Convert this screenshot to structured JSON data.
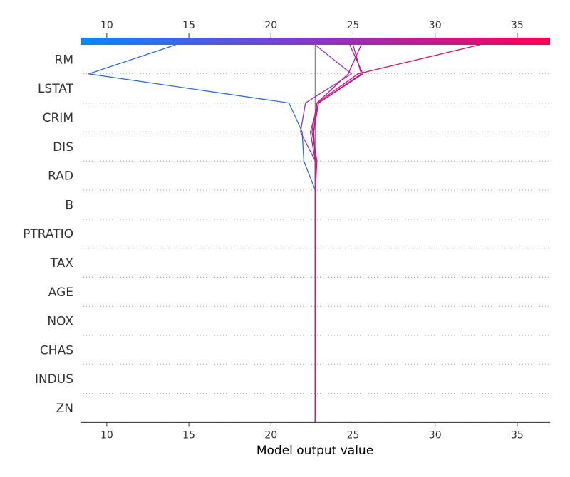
{
  "chart_data": {
    "type": "line",
    "chart_kind": "shap-decision-plot",
    "xlabel": "Model output value",
    "xlim": [
      8.4,
      37.0
    ],
    "x_ticks": [
      10,
      15,
      20,
      25,
      30,
      35
    ],
    "base_value": 22.7,
    "features": [
      "RM",
      "LSTAT",
      "CRIM",
      "DIS",
      "RAD",
      "B",
      "PTRATIO",
      "TAX",
      "AGE",
      "NOX",
      "CHAS",
      "INDUS",
      "ZN"
    ],
    "colorbar": {
      "colors": [
        "#008bfb",
        "#8a35c9",
        "#ff0052"
      ],
      "ticks": [
        10,
        15,
        20,
        25,
        30,
        35
      ]
    },
    "series": [
      {
        "color": "#2a6ee6",
        "final": 14.2,
        "values": [
          14.2,
          8.9,
          21.1,
          21.9,
          22.0,
          22.7,
          22.7,
          22.7,
          22.7,
          22.7,
          22.7,
          22.7,
          22.7
        ]
      },
      {
        "color": "#9a30c8",
        "final": 22.7,
        "values": [
          22.7,
          24.9,
          22.1,
          21.8,
          22.7,
          22.7,
          22.7,
          22.7,
          22.7,
          22.7,
          22.7,
          22.7,
          22.7
        ]
      },
      {
        "color": "#ab1aab",
        "final": 24.8,
        "values": [
          24.8,
          25.6,
          22.9,
          22.4,
          22.7,
          22.7,
          22.7,
          22.7,
          22.7,
          22.7,
          22.7,
          22.7,
          22.7
        ]
      },
      {
        "color": "#b51aa6",
        "final": 25.0,
        "values": [
          25.0,
          25.5,
          22.9,
          22.6,
          22.7,
          22.7,
          22.7,
          22.7,
          22.7,
          22.7,
          22.7,
          22.7,
          22.7
        ]
      },
      {
        "color": "#c4149a",
        "final": 25.5,
        "values": [
          25.5,
          24.7,
          22.8,
          22.5,
          22.8,
          22.7,
          22.7,
          22.7,
          22.7,
          22.7,
          22.7,
          22.7,
          22.7
        ]
      },
      {
        "color": "#e80f6a",
        "final": 32.7,
        "values": [
          32.7,
          25.3,
          22.8,
          22.6,
          22.7,
          22.7,
          22.7,
          22.7,
          22.7,
          22.7,
          22.7,
          22.7,
          22.7
        ]
      }
    ]
  }
}
